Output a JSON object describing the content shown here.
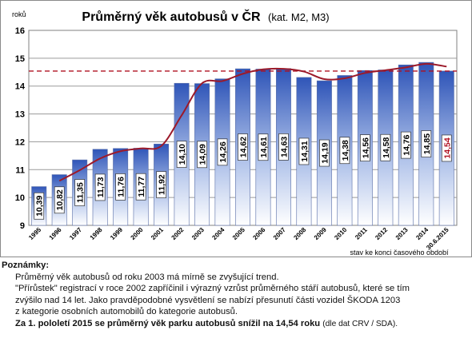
{
  "chart_data": {
    "type": "bar",
    "title": "Průměrný věk autobusů  v ČR",
    "subtitle": "(kat. M2, M3)",
    "ylabel": "roků",
    "xlabel": "stav ke konci časového období",
    "ylim": [
      9,
      16
    ],
    "yticks": [
      9,
      10,
      11,
      12,
      13,
      14,
      15,
      16
    ],
    "grid": true,
    "categories": [
      "1995",
      "1996",
      "1997",
      "1998",
      "1999",
      "2000",
      "2001",
      "2002",
      "2003",
      "2004",
      "2005",
      "2006",
      "2007",
      "2008",
      "2009",
      "2010",
      "2011",
      "2012",
      "2013",
      "2014",
      "30.6.2015"
    ],
    "values": [
      10.39,
      10.82,
      11.35,
      11.73,
      11.76,
      11.77,
      11.92,
      14.1,
      14.09,
      14.26,
      14.62,
      14.61,
      14.63,
      14.31,
      14.19,
      14.38,
      14.56,
      14.58,
      14.76,
      14.85,
      14.54
    ],
    "value_labels": [
      "10,39",
      "10,82",
      "11,35",
      "11,73",
      "11,76",
      "11,77",
      "11,92",
      "14,10",
      "14,09",
      "14,26",
      "14,62",
      "14,61",
      "14,63",
      "14,31",
      "14,19",
      "14,38",
      "14,56",
      "14,58",
      "14,76",
      "14,85",
      "14,54"
    ],
    "highlight_label_color": "#b01020",
    "bar_color_top": "#2f55b8",
    "bar_color_bottom": "#ffffff",
    "trend_line": {
      "color": "#9c1a2a",
      "x": [
        "1996",
        "1997",
        "1998",
        "1999",
        "2000",
        "2001",
        "2002",
        "2003",
        "2004",
        "2005",
        "2006",
        "2007",
        "2008",
        "2009",
        "2010",
        "2011",
        "2012",
        "2013",
        "2014",
        "30.6.2015"
      ],
      "values": [
        10.6,
        10.98,
        11.4,
        11.66,
        11.76,
        11.85,
        12.95,
        14.1,
        14.18,
        14.44,
        14.6,
        14.62,
        14.52,
        14.25,
        14.28,
        14.47,
        14.57,
        14.67,
        14.8,
        14.7
      ]
    },
    "reference_line": {
      "value": 14.54,
      "color": "#b01020",
      "style": "dashed"
    }
  },
  "notes": {
    "heading": "Poznámky:",
    "lines": [
      "Průměrný věk autobusů od roku 2003 má mírně se zvyšující trend.",
      "\"Přírůstek\" registrací v roce 2002 zapříčinil i výrazný vzrůst průměrného stáří autobusů, které se tím",
      "zvýšilo nad 14 let. Jako pravděpodobné vysvětlení se nabízí přesunutí části vozidel ŠKODA 1203",
      "z kategorie osobních automobilů do kategorie autobusů."
    ],
    "final_bold": "Za 1. pololetí 2015 se průměrný věk parku autobusů snížil na 14,54 roku",
    "final_source": "(dle dat CRV / SDA)."
  }
}
